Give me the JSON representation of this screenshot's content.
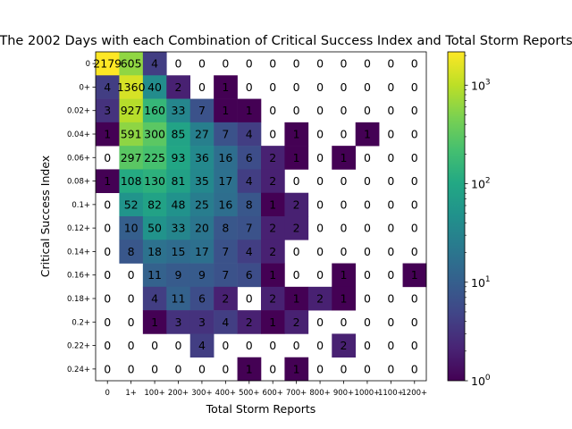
{
  "chart_data": {
    "type": "heatmap",
    "title": "The 2002 Days with each Combination of Critical Success Index and Total Storm Reports",
    "xlabel": "Total Storm Reports",
    "ylabel": "Critical Success Index",
    "x_categories": [
      "0",
      "1+",
      "100+",
      "200+",
      "300+",
      "400+",
      "500+",
      "600+",
      "700+",
      "800+",
      "900+",
      "1000+",
      "1100+",
      "1200+"
    ],
    "y_categories": [
      "0",
      "0+",
      "0.02+",
      "0.04+",
      "0.06+",
      "0.08+",
      "0.1+",
      "0.12+",
      "0.14+",
      "0.16+",
      "0.18+",
      "0.2+",
      "0.22+",
      "0.24+"
    ],
    "values": [
      [
        2179,
        605,
        4,
        0,
        0,
        0,
        0,
        0,
        0,
        0,
        0,
        0,
        0,
        0
      ],
      [
        4,
        1360,
        40,
        2,
        0,
        1,
        0,
        0,
        0,
        0,
        0,
        0,
        0,
        0
      ],
      [
        3,
        927,
        160,
        33,
        7,
        1,
        1,
        0,
        0,
        0,
        0,
        0,
        0,
        0
      ],
      [
        1,
        591,
        300,
        85,
        27,
        7,
        4,
        0,
        1,
        0,
        0,
        1,
        0,
        0
      ],
      [
        0,
        297,
        225,
        93,
        36,
        16,
        6,
        2,
        1,
        0,
        1,
        0,
        0,
        0
      ],
      [
        1,
        108,
        130,
        81,
        35,
        17,
        4,
        2,
        0,
        0,
        0,
        0,
        0,
        0
      ],
      [
        0,
        52,
        82,
        48,
        25,
        16,
        8,
        1,
        2,
        0,
        0,
        0,
        0,
        0
      ],
      [
        0,
        10,
        50,
        33,
        20,
        8,
        7,
        2,
        2,
        0,
        0,
        0,
        0,
        0
      ],
      [
        0,
        8,
        18,
        15,
        17,
        7,
        4,
        2,
        0,
        0,
        0,
        0,
        0,
        0
      ],
      [
        0,
        0,
        11,
        9,
        9,
        7,
        6,
        1,
        0,
        0,
        1,
        0,
        0,
        1
      ],
      [
        0,
        0,
        4,
        11,
        6,
        2,
        0,
        2,
        1,
        2,
        1,
        0,
        0,
        0
      ],
      [
        0,
        0,
        1,
        3,
        3,
        4,
        2,
        1,
        2,
        0,
        0,
        0,
        0,
        0
      ],
      [
        0,
        0,
        0,
        0,
        4,
        0,
        0,
        0,
        0,
        0,
        2,
        0,
        0,
        0
      ],
      [
        0,
        0,
        0,
        0,
        0,
        0,
        1,
        0,
        1,
        0,
        0,
        0,
        0,
        0
      ]
    ],
    "color_scale": "log",
    "colormap": "viridis",
    "colorbar_range": [
      1,
      2179
    ],
    "colorbar_ticks": [
      {
        "value": 1,
        "base": "10",
        "exp": "0"
      },
      {
        "value": 10,
        "base": "10",
        "exp": "1"
      },
      {
        "value": 100,
        "base": "10",
        "exp": "2"
      },
      {
        "value": 1000,
        "base": "10",
        "exp": "3"
      }
    ],
    "grid": false,
    "zero_cells": "blank"
  }
}
